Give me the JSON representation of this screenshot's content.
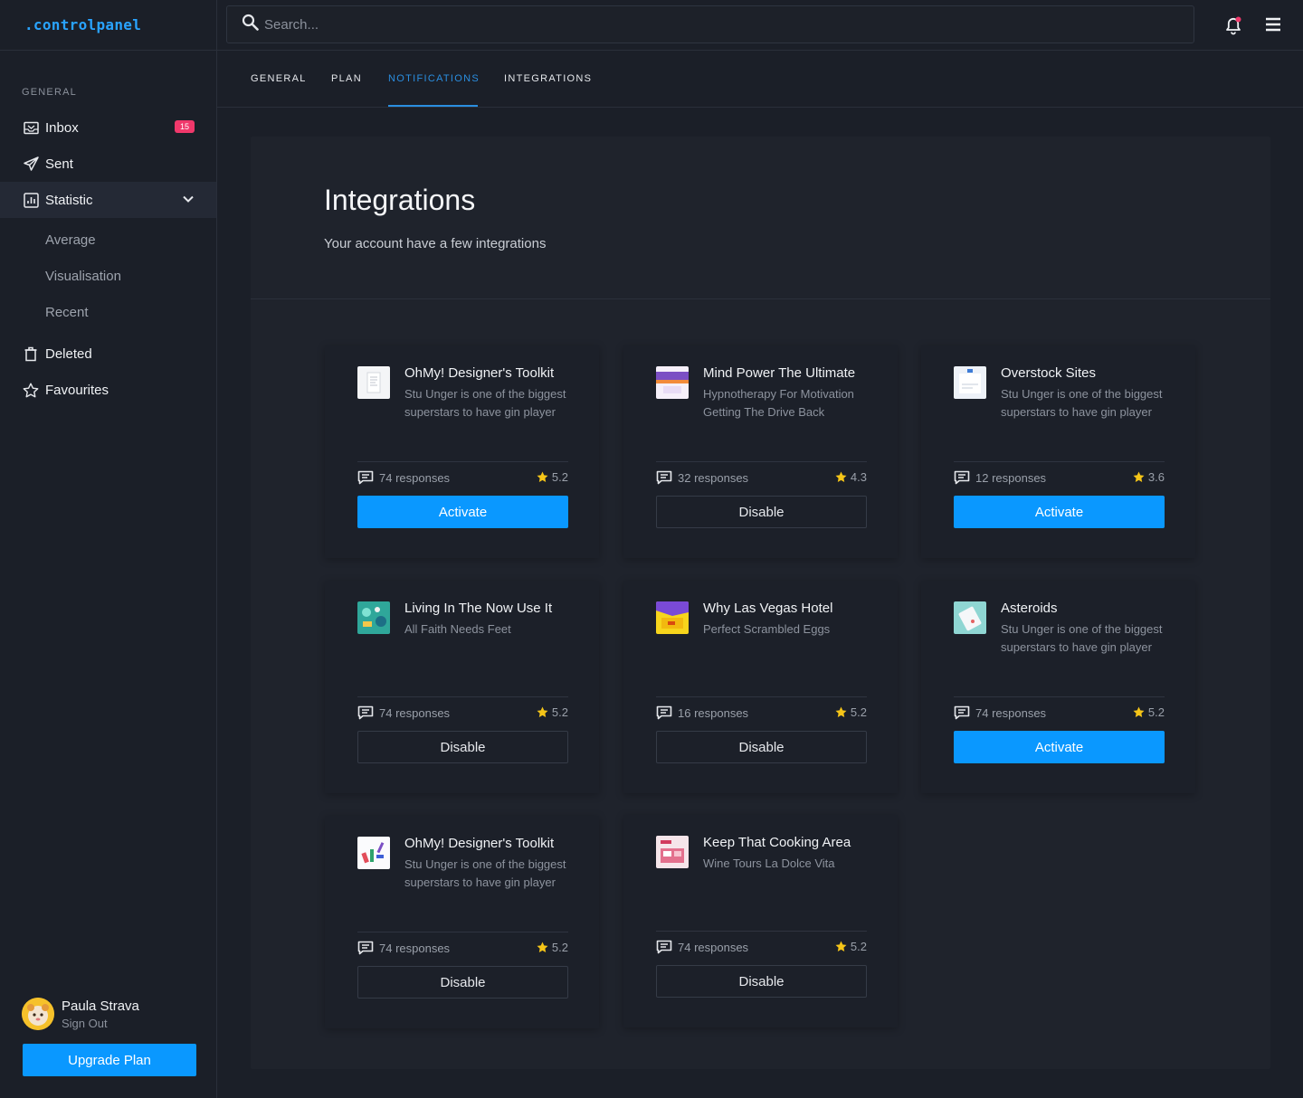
{
  "app": {
    "logo": ".controlpanel"
  },
  "sidebar": {
    "heading": "GENERAL",
    "items": {
      "inbox": {
        "label": "Inbox",
        "badge": "15"
      },
      "sent": {
        "label": "Sent"
      },
      "statistic": {
        "label": "Statistic"
      },
      "deleted": {
        "label": "Deleted"
      },
      "favourites": {
        "label": "Favourites"
      }
    },
    "sub_items": {
      "average": "Average",
      "visualisation": "Visualisation",
      "recent": "Recent"
    },
    "user": {
      "name": "Paula Strava",
      "sign_out": "Sign Out"
    },
    "upgrade_label": "Upgrade Plan"
  },
  "search": {
    "placeholder": "Search..."
  },
  "tabs": {
    "general": "GENERAL",
    "plan": "PLAN",
    "notifications": "NOTIFICATIONS",
    "integrations": "INTEGRATIONS"
  },
  "panel": {
    "title": "Integrations",
    "subtitle": "Your account have a few integrations"
  },
  "cards": [
    {
      "title": "OhMy! Designer's Toolkit",
      "desc": "Stu Unger is one of the biggest superstars to have gin player",
      "responses": "74 responses",
      "rating": "5.2",
      "button": "Activate",
      "thumb": "doc"
    },
    {
      "title": "Mind Power The Ultimate",
      "desc": "Hypnotherapy For Motivation Getting The Drive Back",
      "responses": "32 responses",
      "rating": "4.3",
      "button": "Disable",
      "thumb": "purple"
    },
    {
      "title": "Overstock Sites",
      "desc": "Stu Unger is one of the biggest superstars to have gin player",
      "responses": "12 responses",
      "rating": "3.6",
      "button": "Activate",
      "thumb": "white"
    },
    {
      "title": "Living In The Now Use It",
      "desc": "All Faith Needs Feet",
      "responses": "74 responses",
      "rating": "5.2",
      "button": "Disable",
      "thumb": "teal"
    },
    {
      "title": "Why Las Vegas Hotel",
      "desc": "Perfect Scrambled Eggs",
      "responses": "16 responses",
      "rating": "5.2",
      "button": "Disable",
      "thumb": "yellow"
    },
    {
      "title": "Asteroids",
      "desc": "Stu Unger is one of the biggest superstars to have gin player",
      "responses": "74 responses",
      "rating": "5.2",
      "button": "Activate",
      "thumb": "cyan"
    },
    {
      "title": "OhMy! Designer's Toolkit",
      "desc": "Stu Unger is one of the biggest superstars to have gin player",
      "responses": "74 responses",
      "rating": "5.2",
      "button": "Disable",
      "thumb": "colorful"
    },
    {
      "title": "Keep That Cooking Area",
      "desc": "Wine Tours La Dolce Vita",
      "responses": "74 responses",
      "rating": "5.2",
      "button": "Disable",
      "thumb": "pink"
    }
  ],
  "colors": {
    "accent": "#0a98ff",
    "badge": "#f0386b",
    "logo": "#29a3ff",
    "star": "#f5c518",
    "tab_active": "#2a8ee0"
  }
}
